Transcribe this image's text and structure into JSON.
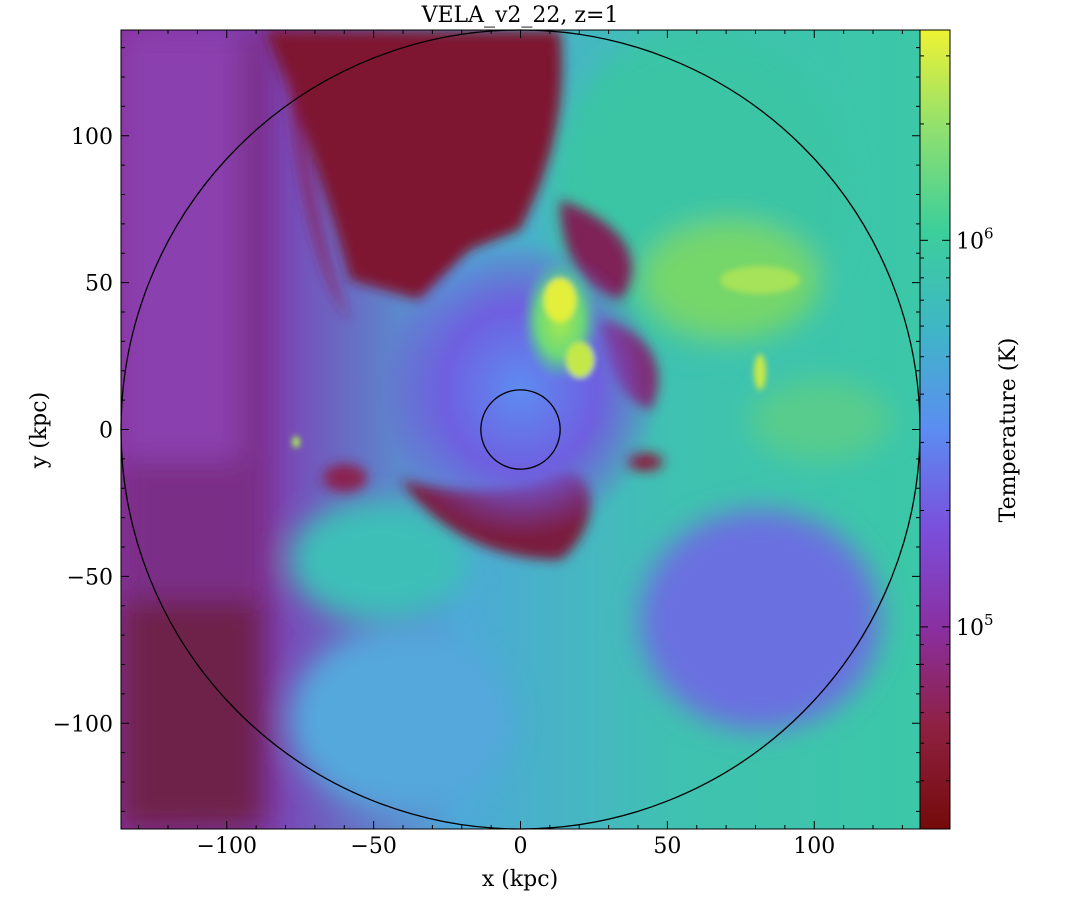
{
  "chart_data": {
    "type": "heatmap",
    "title": "VELA_v2_22, z=1",
    "xlabel": "x  (kpc)",
    "ylabel": "y  (kpc)",
    "xlim": [
      -136,
      136
    ],
    "ylim": [
      -136,
      136
    ],
    "x_ticks": [
      {
        "value": -100,
        "label": "−100"
      },
      {
        "value": -50,
        "label": "−50"
      },
      {
        "value": 0,
        "label": "0"
      },
      {
        "value": 50,
        "label": "50"
      },
      {
        "value": 100,
        "label": "100"
      }
    ],
    "y_ticks": [
      {
        "value": 100,
        "label": "100"
      },
      {
        "value": 50,
        "label": "50"
      },
      {
        "value": 0,
        "label": "0"
      },
      {
        "value": -50,
        "label": "−50"
      },
      {
        "value": -100,
        "label": "−100"
      }
    ],
    "circles": [
      {
        "center": [
          0,
          0
        ],
        "radius_kpc": 136,
        "color": "#000000"
      },
      {
        "center": [
          0,
          0
        ],
        "radius_kpc": 13.5,
        "color": "#000000"
      }
    ],
    "colorbar": {
      "label": "Temperature  (K)",
      "scale": "log",
      "range": [
        30000,
        3500000
      ],
      "ticks": [
        {
          "value": 100000,
          "label": "10",
          "exponent": "5"
        },
        {
          "value": 1000000,
          "label": "10",
          "exponent": "6"
        }
      ],
      "colormap_stops": [
        "#750a0a",
        "#8e2040",
        "#8a2fa0",
        "#7a4fdc",
        "#5b8df2",
        "#3fb6c6",
        "#3ccf9a",
        "#8fe070",
        "#eef233"
      ]
    }
  }
}
